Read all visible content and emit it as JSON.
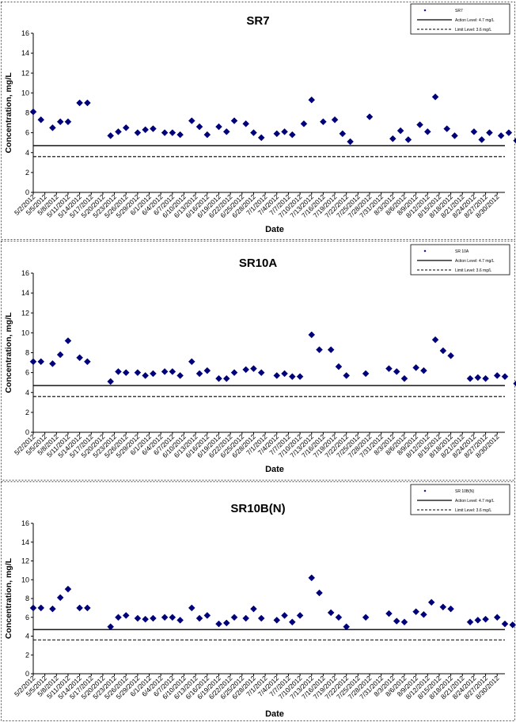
{
  "colors": {
    "marker": "#00007a",
    "line": "#000000",
    "background": "#ffffff"
  },
  "chart_data": [
    {
      "type": "scatter",
      "title": "SR7",
      "xlabel": "Date",
      "ylabel": "Concentration, mg/L",
      "ylim": [
        0,
        16
      ],
      "yticks": [
        "0",
        "2",
        "4",
        "6",
        "8",
        "10",
        "12",
        "14",
        "16"
      ],
      "xlim": [
        "2012-05-02",
        "2012-09-01"
      ],
      "xticks": [
        "5/2/2012",
        "5/5/2012",
        "5/8/2012",
        "5/11/2012",
        "5/14/2012",
        "5/17/2012",
        "5/20/2012",
        "5/23/2012",
        "5/26/2012",
        "5/29/2012",
        "6/1/2012",
        "6/4/2012",
        "6/7/2012",
        "6/10/2012",
        "6/13/2012",
        "6/16/2012",
        "6/19/2012",
        "6/22/2012",
        "6/25/2012",
        "6/28/2012",
        "7/1/2012",
        "7/4/2012",
        "7/7/2012",
        "7/10/2012",
        "7/13/2012",
        "7/16/2012",
        "7/19/2012",
        "7/22/2012",
        "7/25/2012",
        "7/28/2012",
        "7/31/2012",
        "8/3/2012",
        "8/6/2012",
        "8/9/2012",
        "8/12/2012",
        "8/15/2012",
        "8/18/2012",
        "8/21/2012",
        "8/24/2012",
        "8/27/2012",
        "8/30/2012"
      ],
      "grid": false,
      "legend_position": "top-right",
      "legend": [
        "SR7",
        "Action Level: 4.7 mg/L",
        "Limit Level: 3.6 mg/L"
      ],
      "reference_lines": [
        {
          "name": "Action Level: 4.7 mg/L",
          "y": 4.7,
          "style": "solid"
        },
        {
          "name": "Limit Level: 3.6 mg/L",
          "y": 3.6,
          "style": "dashed"
        }
      ],
      "series": [
        {
          "name": "SR7",
          "marker": "diamond",
          "x": [
            "2012-05-02",
            "2012-05-04",
            "2012-05-07",
            "2012-05-09",
            "2012-05-11",
            "2012-05-14",
            "2012-05-16",
            "2012-05-22",
            "2012-05-24",
            "2012-05-26",
            "2012-05-29",
            "2012-05-31",
            "2012-06-02",
            "2012-06-05",
            "2012-06-07",
            "2012-06-09",
            "2012-06-12",
            "2012-06-14",
            "2012-06-16",
            "2012-06-19",
            "2012-06-21",
            "2012-06-23",
            "2012-06-26",
            "2012-06-28",
            "2012-06-30",
            "2012-07-04",
            "2012-07-06",
            "2012-07-08",
            "2012-07-11",
            "2012-07-13",
            "2012-07-16",
            "2012-07-19",
            "2012-07-21",
            "2012-07-23",
            "2012-07-28",
            "2012-08-03",
            "2012-08-05",
            "2012-08-07",
            "2012-08-10",
            "2012-08-12",
            "2012-08-14",
            "2012-08-17",
            "2012-08-19",
            "2012-08-24",
            "2012-08-26",
            "2012-08-28",
            "2012-08-31",
            "2012-09-02",
            "2012-09-04",
            "2012-09-07"
          ],
          "y": [
            8.1,
            7.3,
            6.5,
            7.1,
            7.1,
            9.0,
            9.0,
            5.7,
            6.1,
            6.5,
            6.0,
            6.3,
            6.4,
            6.0,
            6.0,
            5.8,
            7.2,
            6.6,
            5.8,
            6.6,
            6.1,
            7.2,
            6.9,
            6.0,
            5.5,
            5.9,
            6.1,
            5.8,
            6.9,
            9.3,
            7.1,
            7.3,
            5.9,
            5.1,
            7.6,
            5.4,
            6.2,
            5.3,
            6.8,
            6.1,
            9.6,
            6.4,
            5.7,
            6.1,
            5.3,
            6.0,
            5.7,
            6.0,
            5.2,
            5.2
          ]
        }
      ]
    },
    {
      "type": "scatter",
      "title": "SR10A",
      "xlabel": "Date",
      "ylabel": "Concentration, mg/L",
      "ylim": [
        0,
        16
      ],
      "yticks": [
        "0",
        "2",
        "4",
        "6",
        "8",
        "10",
        "12",
        "14",
        "16"
      ],
      "xlim": [
        "2012-05-02",
        "2012-09-01"
      ],
      "xticks": [
        "5/2/2012",
        "5/5/2012",
        "5/8/2012",
        "5/11/2012",
        "5/14/2012",
        "5/17/2012",
        "5/20/2012",
        "5/23/2012",
        "5/26/2012",
        "5/29/2012",
        "6/1/2012",
        "6/4/2012",
        "6/7/2012",
        "6/10/2012",
        "6/13/2012",
        "6/16/2012",
        "6/19/2012",
        "6/22/2012",
        "6/25/2012",
        "6/28/2012",
        "7/1/2012",
        "7/4/2012",
        "7/7/2012",
        "7/10/2012",
        "7/13/2012",
        "7/16/2012",
        "7/19/2012",
        "7/22/2012",
        "7/25/2012",
        "7/28/2012",
        "7/31/2012",
        "8/3/2012",
        "8/6/2012",
        "8/9/2012",
        "8/12/2012",
        "8/15/2012",
        "8/18/2012",
        "8/21/2012",
        "8/24/2012",
        "8/27/2012",
        "8/30/2012"
      ],
      "grid": false,
      "legend_position": "top-right",
      "legend": [
        "SR 10A",
        "Action Level: 4.7 mg/L",
        "Limit Level: 3.6 mg/L"
      ],
      "reference_lines": [
        {
          "name": "Action Level: 4.7 mg/L",
          "y": 4.7,
          "style": "solid"
        },
        {
          "name": "Limit Level: 3.6 mg/L",
          "y": 3.6,
          "style": "dashed"
        }
      ],
      "series": [
        {
          "name": "SR 10A",
          "marker": "diamond",
          "x": [
            "2012-05-02",
            "2012-05-04",
            "2012-05-07",
            "2012-05-09",
            "2012-05-11",
            "2012-05-14",
            "2012-05-16",
            "2012-05-22",
            "2012-05-24",
            "2012-05-26",
            "2012-05-29",
            "2012-05-31",
            "2012-06-02",
            "2012-06-05",
            "2012-06-07",
            "2012-06-09",
            "2012-06-12",
            "2012-06-14",
            "2012-06-16",
            "2012-06-19",
            "2012-06-21",
            "2012-06-23",
            "2012-06-26",
            "2012-06-28",
            "2012-06-30",
            "2012-07-04",
            "2012-07-06",
            "2012-07-08",
            "2012-07-10",
            "2012-07-13",
            "2012-07-15",
            "2012-07-18",
            "2012-07-20",
            "2012-07-22",
            "2012-07-27",
            "2012-08-02",
            "2012-08-04",
            "2012-08-06",
            "2012-08-09",
            "2012-08-11",
            "2012-08-14",
            "2012-08-16",
            "2012-08-18",
            "2012-08-23",
            "2012-08-25",
            "2012-08-27",
            "2012-08-30",
            "2012-09-01",
            "2012-09-04"
          ],
          "y": [
            7.1,
            7.1,
            6.9,
            7.8,
            9.2,
            7.5,
            7.1,
            5.1,
            6.1,
            6.0,
            6.0,
            5.7,
            5.9,
            6.1,
            6.1,
            5.7,
            7.1,
            5.9,
            6.2,
            5.4,
            5.4,
            6.0,
            6.3,
            6.4,
            6.0,
            5.7,
            5.9,
            5.6,
            5.6,
            9.8,
            8.3,
            8.3,
            6.6,
            5.7,
            5.9,
            6.4,
            6.1,
            5.4,
            6.5,
            6.2,
            9.3,
            8.2,
            7.7,
            5.4,
            5.5,
            5.4,
            5.7,
            5.6,
            4.9
          ]
        }
      ]
    },
    {
      "type": "scatter",
      "title": "SR10B(N)",
      "xlabel": "Date",
      "ylabel": "Concentration, mg/L",
      "ylim": [
        0,
        16
      ],
      "yticks": [
        "0",
        "2",
        "4",
        "6",
        "8",
        "10",
        "12",
        "14",
        "16"
      ],
      "xlim": [
        "2012-05-02",
        "2012-09-01"
      ],
      "xticks": [
        "5/2/2012",
        "5/5/2012",
        "5/8/2012",
        "5/11/2012",
        "5/14/2012",
        "5/17/2012",
        "5/20/2012",
        "5/23/2012",
        "5/26/2012",
        "5/29/2012",
        "6/1/2012",
        "6/4/2012",
        "6/7/2012",
        "6/10/2012",
        "6/13/2012",
        "6/16/2012",
        "6/19/2012",
        "6/22/2012",
        "6/25/2012",
        "6/28/2012",
        "7/1/2012",
        "7/4/2012",
        "7/7/2012",
        "7/10/2012",
        "7/13/2012",
        "7/16/2012",
        "7/19/2012",
        "7/22/2012",
        "7/25/2012",
        "7/28/2012",
        "7/31/2012",
        "8/3/2012",
        "8/6/2012",
        "8/9/2012",
        "8/12/2012",
        "8/15/2012",
        "8/18/2012",
        "8/21/2012",
        "8/24/2012",
        "8/27/2012",
        "8/30/2012"
      ],
      "grid": false,
      "legend_position": "top-right",
      "legend": [
        "SR 10B(N)",
        "Action Level: 4.7 mg/L",
        "Limit Level: 3.6 mg/L"
      ],
      "reference_lines": [
        {
          "name": "Action Level: 4.7 mg/L",
          "y": 4.7,
          "style": "solid"
        },
        {
          "name": "Limit Level: 3.6 mg/L",
          "y": 3.6,
          "style": "dashed"
        }
      ],
      "series": [
        {
          "name": "SR 10B(N)",
          "marker": "diamond",
          "x": [
            "2012-05-02",
            "2012-05-04",
            "2012-05-07",
            "2012-05-09",
            "2012-05-11",
            "2012-05-14",
            "2012-05-16",
            "2012-05-22",
            "2012-05-24",
            "2012-05-26",
            "2012-05-29",
            "2012-05-31",
            "2012-06-02",
            "2012-06-05",
            "2012-06-07",
            "2012-06-09",
            "2012-06-12",
            "2012-06-14",
            "2012-06-16",
            "2012-06-19",
            "2012-06-21",
            "2012-06-23",
            "2012-06-26",
            "2012-06-28",
            "2012-06-30",
            "2012-07-04",
            "2012-07-06",
            "2012-07-08",
            "2012-07-10",
            "2012-07-13",
            "2012-07-15",
            "2012-07-18",
            "2012-07-20",
            "2012-07-22",
            "2012-07-27",
            "2012-08-02",
            "2012-08-04",
            "2012-08-06",
            "2012-08-09",
            "2012-08-11",
            "2012-08-13",
            "2012-08-16",
            "2012-08-18",
            "2012-08-23",
            "2012-08-25",
            "2012-08-27",
            "2012-08-30",
            "2012-09-01",
            "2012-09-03"
          ],
          "y": [
            7.0,
            7.0,
            6.9,
            8.1,
            9.0,
            7.0,
            7.0,
            5.0,
            6.0,
            6.2,
            5.9,
            5.8,
            5.9,
            6.0,
            6.0,
            5.7,
            7.0,
            5.9,
            6.2,
            5.3,
            5.4,
            6.0,
            5.9,
            6.9,
            5.9,
            5.7,
            6.2,
            5.5,
            6.2,
            10.2,
            8.6,
            6.5,
            6.0,
            5.0,
            6.0,
            6.4,
            5.6,
            5.5,
            6.6,
            6.3,
            7.6,
            7.1,
            6.9,
            5.5,
            5.7,
            5.8,
            6.0,
            5.3,
            5.2
          ]
        }
      ]
    }
  ]
}
